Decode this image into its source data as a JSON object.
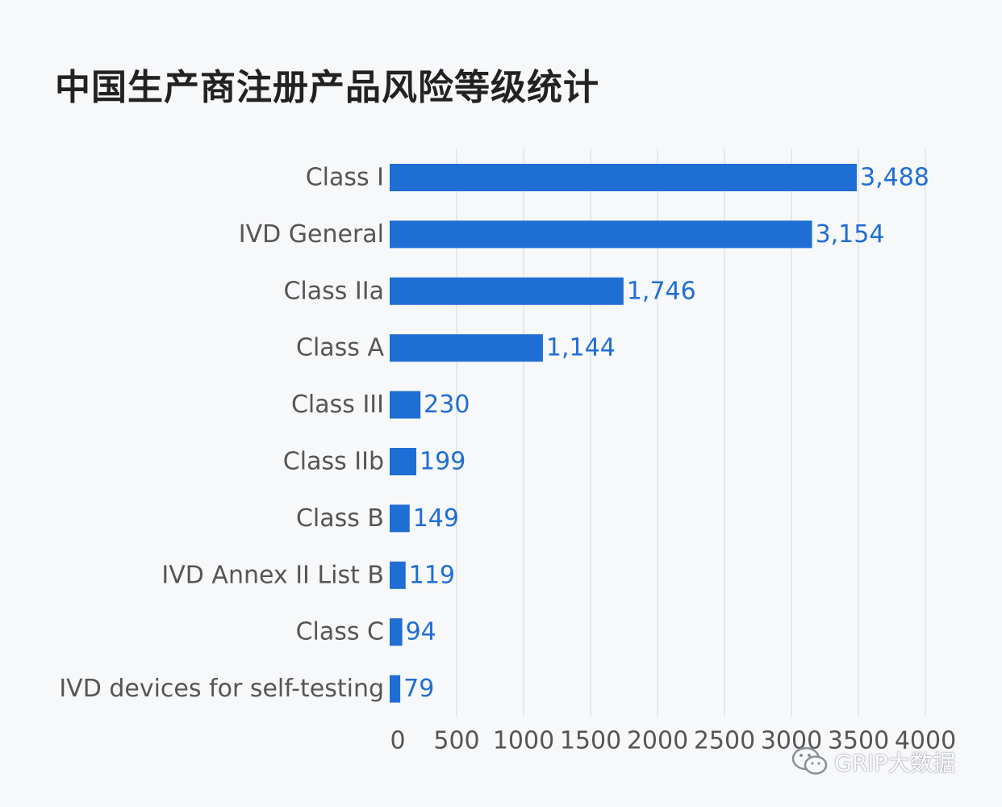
{
  "chart_data": {
    "type": "bar",
    "orientation": "horizontal",
    "title": "中国生产商注册产品风险等级统计",
    "categories": [
      "Class I",
      "IVD General",
      "Class IIa",
      "Class A",
      "Class III",
      "Class IIb",
      "Class B",
      "IVD Annex II List B",
      "Class C",
      "IVD devices for self-testing"
    ],
    "values": [
      3488,
      3154,
      1746,
      1144,
      230,
      199,
      149,
      119,
      94,
      79
    ],
    "value_labels": [
      "3,488",
      "3,154",
      "1,746",
      "1,144",
      "230",
      "199",
      "149",
      "119",
      "94",
      "79"
    ],
    "xlim": [
      0,
      4000
    ],
    "x_ticks": [
      0,
      500,
      1000,
      1500,
      2000,
      2500,
      3000,
      3500,
      4000
    ],
    "grid": "vertical",
    "bar_color": "#1f6ed4",
    "label_color": "#1f6ed4"
  },
  "watermark": {
    "text": "GRIP大数据",
    "icon": "wechat-icon"
  }
}
